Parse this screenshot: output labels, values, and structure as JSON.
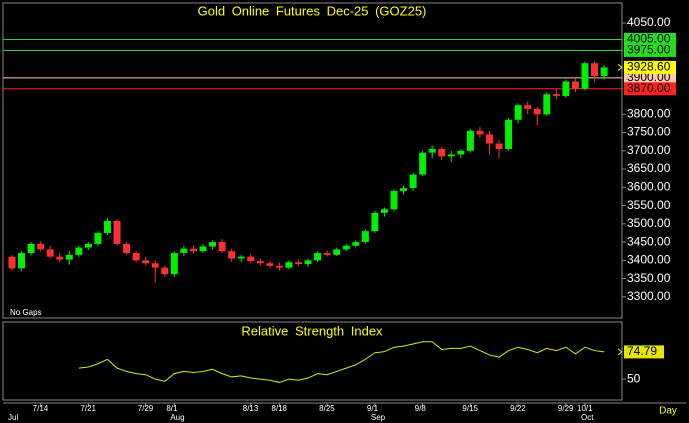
{
  "chart_data": [
    {
      "type": "candlestick",
      "title": "Gold Online Futures Dec-25 (GOZ25)",
      "note": "No Gaps",
      "categories": [
        null,
        null,
        null,
        "7/14",
        null,
        null,
        null,
        null,
        "7/21",
        null,
        null,
        null,
        null,
        null,
        "7/29",
        null,
        null,
        "8/1",
        null,
        null,
        null,
        null,
        null,
        null,
        null,
        "8/13",
        null,
        null,
        "8/18",
        null,
        null,
        null,
        null,
        "8/25",
        null,
        null,
        null,
        null,
        "9/1",
        null,
        null,
        null,
        null,
        "9/8",
        null,
        null,
        null,
        null,
        "9/15",
        null,
        null,
        null,
        null,
        "9/22",
        null,
        null,
        null,
        null,
        "9/29",
        null,
        "10/1",
        null,
        null
      ],
      "months": [
        "Jul",
        null,
        null,
        null,
        null,
        null,
        null,
        null,
        null,
        null,
        null,
        null,
        null,
        null,
        null,
        null,
        null,
        "Aug",
        null,
        null,
        null,
        null,
        null,
        null,
        null,
        null,
        null,
        null,
        null,
        null,
        null,
        null,
        null,
        null,
        null,
        null,
        null,
        null,
        "Sep",
        null,
        null,
        null,
        null,
        null,
        null,
        null,
        null,
        null,
        null,
        null,
        null,
        null,
        null,
        null,
        null,
        null,
        null,
        null,
        null,
        null,
        "Oct",
        null,
        null
      ],
      "open": [
        3410,
        3378,
        3420,
        3445,
        3430,
        3410,
        3402,
        3415,
        3435,
        3445,
        3475,
        3508,
        3445,
        3420,
        3400,
        3392,
        3380,
        3362,
        3420,
        3432,
        3425,
        3438,
        3450,
        3425,
        3405,
        3410,
        3398,
        3392,
        3385,
        3380,
        3395,
        3390,
        3400,
        3420,
        3415,
        3430,
        3440,
        3450,
        3480,
        3530,
        3540,
        3590,
        3598,
        3635,
        3695,
        3705,
        3685,
        3690,
        3700,
        3755,
        3745,
        3720,
        3705,
        3785,
        3825,
        3815,
        3800,
        3855,
        3850,
        3890,
        3870,
        3940,
        3905
      ],
      "high": [
        3415,
        3425,
        3450,
        3452,
        3440,
        3420,
        3425,
        3440,
        3450,
        3480,
        3515,
        3512,
        3450,
        3425,
        3410,
        3400,
        3385,
        3425,
        3440,
        3440,
        3445,
        3455,
        3458,
        3432,
        3415,
        3418,
        3405,
        3398,
        3395,
        3400,
        3402,
        3405,
        3425,
        3428,
        3435,
        3445,
        3455,
        3485,
        3535,
        3545,
        3595,
        3605,
        3640,
        3700,
        3715,
        3710,
        3700,
        3705,
        3760,
        3765,
        3755,
        3730,
        3790,
        3830,
        3835,
        3820,
        3860,
        3870,
        3895,
        3900,
        3945,
        3945,
        3935
      ],
      "low": [
        3372,
        3370,
        3415,
        3425,
        3405,
        3395,
        3388,
        3410,
        3428,
        3440,
        3470,
        3440,
        3415,
        3395,
        3385,
        3340,
        3355,
        3355,
        3412,
        3418,
        3420,
        3430,
        3420,
        3395,
        3395,
        3392,
        3385,
        3380,
        3372,
        3375,
        3385,
        3382,
        3395,
        3410,
        3412,
        3425,
        3435,
        3445,
        3475,
        3520,
        3535,
        3580,
        3590,
        3630,
        3680,
        3675,
        3670,
        3680,
        3695,
        3735,
        3690,
        3680,
        3700,
        3775,
        3800,
        3770,
        3795,
        3840,
        3845,
        3860,
        3865,
        3890,
        3895
      ],
      "close": [
        3378,
        3420,
        3445,
        3430,
        3410,
        3402,
        3415,
        3435,
        3445,
        3475,
        3508,
        3445,
        3420,
        3400,
        3392,
        3380,
        3362,
        3420,
        3432,
        3425,
        3438,
        3450,
        3425,
        3405,
        3410,
        3398,
        3392,
        3385,
        3380,
        3395,
        3390,
        3400,
        3420,
        3415,
        3430,
        3440,
        3450,
        3480,
        3530,
        3540,
        3590,
        3598,
        3635,
        3695,
        3705,
        3685,
        3690,
        3700,
        3755,
        3745,
        3720,
        3705,
        3785,
        3825,
        3815,
        3800,
        3855,
        3850,
        3890,
        3870,
        3940,
        3905,
        3928.6
      ],
      "up_color": "#00ee00",
      "down_color": "#ff3030",
      "ylim": [
        3242,
        4105
      ],
      "yticks": [
        {
          "value": 4050,
          "label": "4050.00"
        },
        {
          "value": 3800,
          "label": "3800.00"
        },
        {
          "value": 3750,
          "label": "3750.00"
        },
        {
          "value": 3700,
          "label": "3700.00"
        },
        {
          "value": 3650,
          "label": "3650.00"
        },
        {
          "value": 3600,
          "label": "3600.00"
        },
        {
          "value": 3550,
          "label": "3550.00"
        },
        {
          "value": 3500,
          "label": "3500.00"
        },
        {
          "value": 3450,
          "label": "3450.00"
        },
        {
          "value": 3400,
          "label": "3400.00"
        },
        {
          "value": 3350,
          "label": "3350.00"
        },
        {
          "value": 3300,
          "label": "3300.00"
        }
      ],
      "levels": [
        {
          "value": 4005,
          "label": "4005.00",
          "color": "#22dd22"
        },
        {
          "value": 3975,
          "label": "3975.00",
          "color": "#22dd22"
        },
        {
          "value": 3900,
          "label": "3900.00",
          "color": "#ffc9b0"
        },
        {
          "value": 3870,
          "label": "3870.00",
          "color": "#ff2020"
        }
      ],
      "last_price": {
        "value": 3928.6,
        "label": "3928.60",
        "color": "#ffff00"
      }
    },
    {
      "type": "line",
      "title": "Relative Strength Index",
      "color": "#e6e600",
      "values": [
        null,
        null,
        null,
        null,
        null,
        null,
        null,
        60,
        61,
        64,
        68,
        60,
        57,
        55,
        54,
        50,
        48,
        55,
        57,
        56,
        57,
        59,
        55,
        52,
        53,
        51,
        50,
        49,
        47,
        50,
        49,
        51,
        55,
        54,
        57,
        60,
        63,
        68,
        74,
        75,
        79,
        80,
        82,
        84,
        84,
        77,
        78,
        78,
        80,
        76,
        72,
        70,
        76,
        79,
        77,
        74,
        78,
        76,
        79,
        73,
        79,
        76,
        74.79
      ],
      "last_value": 74.79,
      "ylim": [
        31,
        102
      ],
      "yticks": [
        50
      ],
      "x_unit": "Day"
    }
  ]
}
